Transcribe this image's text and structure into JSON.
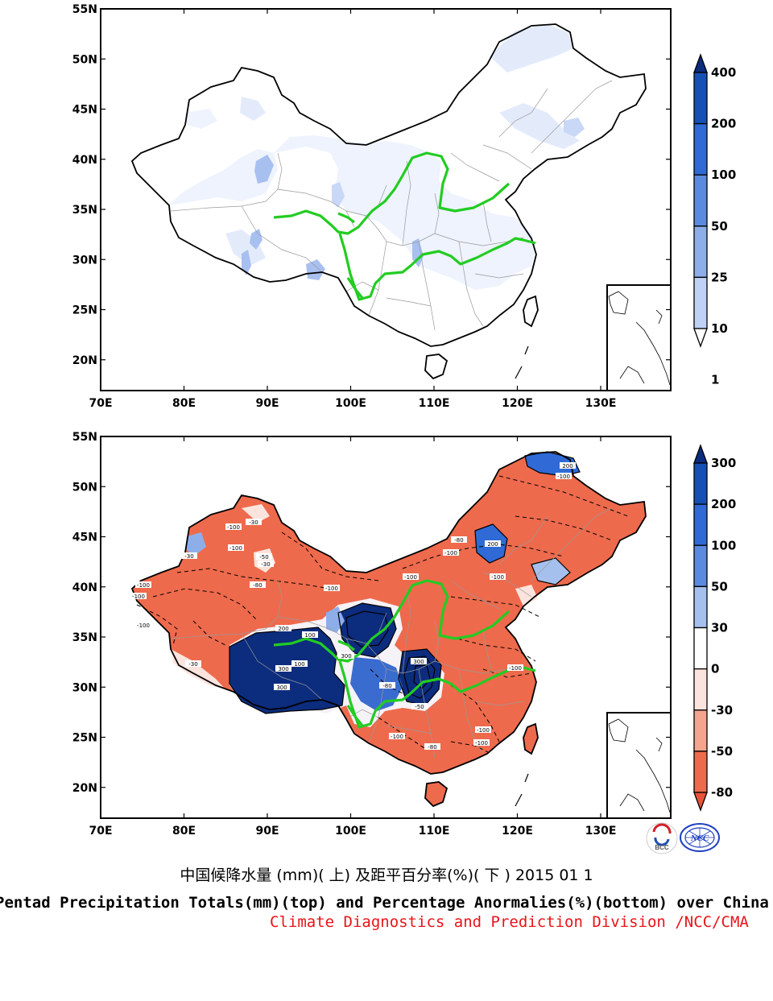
{
  "top_map": {
    "lat_labels": [
      "55N",
      "50N",
      "45N",
      "40N",
      "35N",
      "30N",
      "25N",
      "20N"
    ],
    "lon_labels": [
      "70E",
      "80E",
      "90E",
      "100E",
      "110E",
      "120E",
      "130E"
    ],
    "colorbar_labels": [
      "400",
      "200",
      "100",
      "50",
      "25",
      "10",
      "1"
    ],
    "colorbar_colors": [
      "#0c2c7e",
      "#1650b6",
      "#2f6ad6",
      "#5b8be0",
      "#8eaee9",
      "#bfd1f4",
      "#ffffff"
    ]
  },
  "bottom_map": {
    "lat_labels": [
      "55N",
      "50N",
      "45N",
      "40N",
      "35N",
      "30N",
      "25N",
      "20N"
    ],
    "lon_labels": [
      "70E",
      "80E",
      "90E",
      "100E",
      "110E",
      "120E",
      "130E"
    ],
    "colorbar_labels": [
      "300",
      "200",
      "100",
      "50",
      "30",
      "0",
      "-30",
      "-50",
      "-80"
    ],
    "colorbar_colors": [
      "#0c2c7e",
      "#1650b6",
      "#2f6ad6",
      "#5b8be0",
      "#a6c0ee",
      "#ffffff",
      "#fbe4dd",
      "#f5a48e",
      "#ee6a4c",
      "#e8533a"
    ],
    "contour_labels": [
      "-100",
      "-30",
      "-100",
      "-50",
      "-30",
      "-80",
      "-100",
      "-100",
      "-30",
      "-100",
      "200",
      "-100",
      "-80",
      "200",
      "-100",
      "-100",
      "-100",
      "300",
      "200",
      "100",
      "100",
      "300",
      "-100",
      "300",
      "-80",
      "-50",
      "-100",
      "-100",
      "-100",
      "-80",
      "-100",
      "-30",
      "300"
    ]
  },
  "logos": {
    "bcc_text": "BCC",
    "ncc_text": "NCC"
  },
  "captions": {
    "chinese": "中国候降水量 (mm)( 上) 及距平百分率(%)( 下 ) 2015 01 1",
    "english": "Pentad Precipitation Totals(mm)(top) and Percentage Anormalies(%)(bottom) over China",
    "organization": "Climate Diagnostics and Prediction Division /NCC/CMA"
  },
  "colors": {
    "river": "#22cc22",
    "caption_org": "#e8141a"
  }
}
